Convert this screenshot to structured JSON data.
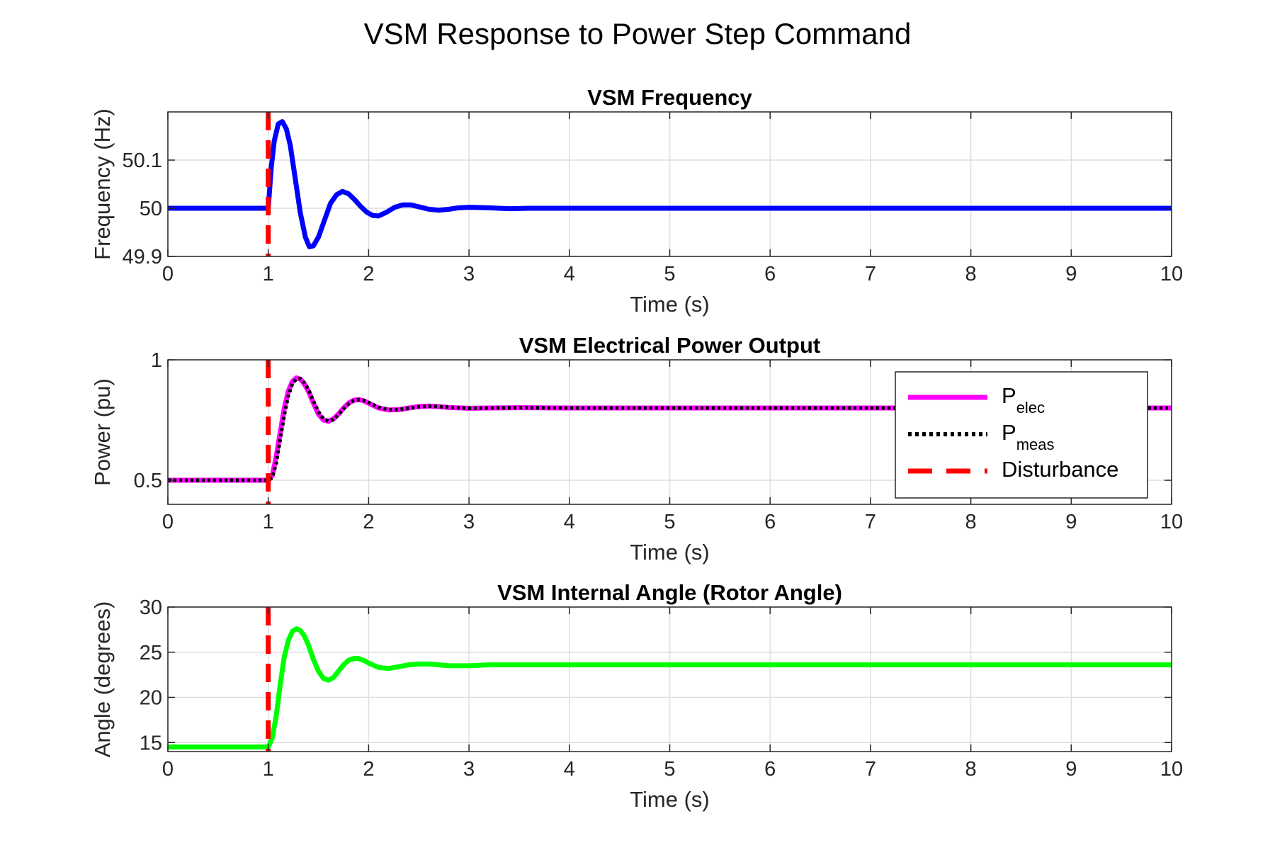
{
  "figure": {
    "title": "VSM Response to Power Step Command"
  },
  "chart_data": [
    {
      "type": "line",
      "title": "VSM Frequency",
      "xlabel": "Time (s)",
      "ylabel": "Frequency (Hz)",
      "xlim": [
        0,
        10
      ],
      "ylim": [
        49.9,
        50.2
      ],
      "xticks": [
        "0",
        "1",
        "2",
        "3",
        "4",
        "5",
        "6",
        "7",
        "8",
        "9",
        "10"
      ],
      "yticks": [
        "49.9",
        "50",
        "50.1"
      ],
      "ytick_values": [
        49.9,
        50.0,
        50.1
      ],
      "grid": true,
      "disturbance_time": 1,
      "disturbance_color": "#ff0000",
      "series": [
        {
          "color": "#0000ff",
          "x": [
            0,
            1.0,
            1.03,
            1.06,
            1.1,
            1.14,
            1.18,
            1.22,
            1.27,
            1.32,
            1.37,
            1.41,
            1.45,
            1.5,
            1.56,
            1.62,
            1.68,
            1.74,
            1.8,
            1.86,
            1.92,
            1.98,
            2.04,
            2.1,
            2.18,
            2.26,
            2.34,
            2.42,
            2.5,
            2.6,
            2.7,
            2.8,
            2.9,
            3.0,
            3.2,
            3.4,
            3.6,
            3.8,
            4.0,
            5.0,
            6.0,
            7.0,
            8.0,
            9.0,
            10.0
          ],
          "y": [
            50.0,
            50.0,
            50.085,
            50.14,
            50.175,
            50.18,
            50.165,
            50.13,
            50.06,
            49.99,
            49.94,
            49.92,
            49.922,
            49.94,
            49.975,
            50.01,
            50.028,
            50.035,
            50.03,
            50.018,
            50.004,
            49.992,
            49.985,
            49.984,
            49.992,
            50.002,
            50.007,
            50.007,
            50.003,
            49.998,
            49.996,
            49.998,
            50.001,
            50.002,
            50.001,
            49.999,
            50.0,
            50.0,
            50.0,
            50.0,
            50.0,
            50.0,
            50.0,
            50.0,
            50.0
          ]
        }
      ]
    },
    {
      "type": "line",
      "title": "VSM Electrical Power Output",
      "xlabel": "Time (s)",
      "ylabel": "Power (pu)",
      "xlim": [
        0,
        10
      ],
      "ylim": [
        0.4,
        1.0
      ],
      "xticks": [
        "0",
        "1",
        "2",
        "3",
        "4",
        "5",
        "6",
        "7",
        "8",
        "9",
        "10"
      ],
      "yticks": [
        "0.5",
        "1"
      ],
      "ytick_values": [
        0.5,
        1.0
      ],
      "grid": true,
      "disturbance_time": 1,
      "disturbance_color": "#ff0000",
      "legend": {
        "placement": "top-right",
        "entries": [
          {
            "main": "P",
            "sub": "elec",
            "color": "#ff00ff",
            "style": "solid"
          },
          {
            "main": "P",
            "sub": "meas",
            "color": "#000000",
            "style": "dotted"
          },
          {
            "main": "Disturbance",
            "sub": "",
            "color": "#ff0000",
            "style": "dashed"
          }
        ]
      },
      "series": [
        {
          "name": "Pelec",
          "color": "#ff00ff",
          "x": [
            0,
            1.0,
            1.04,
            1.08,
            1.12,
            1.16,
            1.2,
            1.24,
            1.28,
            1.32,
            1.36,
            1.4,
            1.45,
            1.5,
            1.55,
            1.6,
            1.65,
            1.7,
            1.75,
            1.8,
            1.85,
            1.9,
            1.95,
            2.0,
            2.1,
            2.2,
            2.3,
            2.4,
            2.5,
            2.6,
            2.7,
            2.8,
            3.0,
            3.2,
            3.5,
            4.0,
            5.0,
            6.0,
            7.0,
            8.0,
            9.0,
            10.0
          ],
          "y": [
            0.5,
            0.5,
            0.52,
            0.6,
            0.7,
            0.8,
            0.87,
            0.91,
            0.925,
            0.92,
            0.9,
            0.87,
            0.82,
            0.775,
            0.75,
            0.745,
            0.755,
            0.775,
            0.8,
            0.82,
            0.832,
            0.835,
            0.83,
            0.82,
            0.8,
            0.792,
            0.793,
            0.8,
            0.806,
            0.808,
            0.806,
            0.802,
            0.799,
            0.8,
            0.801,
            0.8,
            0.8,
            0.8,
            0.8,
            0.8,
            0.8,
            0.8
          ]
        },
        {
          "name": "Pmeas",
          "color": "#000000",
          "x": [
            0,
            1.0,
            1.04,
            1.08,
            1.12,
            1.16,
            1.2,
            1.24,
            1.28,
            1.32,
            1.36,
            1.4,
            1.45,
            1.5,
            1.55,
            1.6,
            1.65,
            1.7,
            1.75,
            1.8,
            1.85,
            1.9,
            1.95,
            2.0,
            2.1,
            2.2,
            2.3,
            2.4,
            2.5,
            2.6,
            2.7,
            2.8,
            3.0,
            3.2,
            3.5,
            4.0,
            5.0,
            6.0,
            7.0,
            8.0,
            9.0,
            10.0
          ],
          "y": [
            0.5,
            0.5,
            0.51,
            0.57,
            0.67,
            0.77,
            0.85,
            0.9,
            0.92,
            0.922,
            0.905,
            0.878,
            0.83,
            0.785,
            0.755,
            0.745,
            0.752,
            0.772,
            0.796,
            0.816,
            0.83,
            0.835,
            0.832,
            0.823,
            0.803,
            0.793,
            0.793,
            0.799,
            0.805,
            0.808,
            0.806,
            0.803,
            0.799,
            0.8,
            0.801,
            0.8,
            0.8,
            0.8,
            0.8,
            0.8,
            0.8,
            0.8
          ]
        }
      ]
    },
    {
      "type": "line",
      "title": "VSM Internal Angle (Rotor Angle)",
      "xlabel": "Time (s)",
      "ylabel": "Angle (degrees)",
      "xlim": [
        0,
        10
      ],
      "ylim": [
        14,
        30
      ],
      "xticks": [
        "0",
        "1",
        "2",
        "3",
        "4",
        "5",
        "6",
        "7",
        "8",
        "9",
        "10"
      ],
      "yticks": [
        "15",
        "20",
        "25",
        "30"
      ],
      "ytick_values": [
        15,
        20,
        25,
        30
      ],
      "grid": true,
      "disturbance_time": 1,
      "disturbance_color": "#ff0000",
      "series": [
        {
          "color": "#00ff00",
          "x": [
            0,
            1.0,
            1.04,
            1.08,
            1.12,
            1.16,
            1.2,
            1.24,
            1.28,
            1.32,
            1.36,
            1.4,
            1.45,
            1.5,
            1.55,
            1.6,
            1.65,
            1.7,
            1.75,
            1.8,
            1.85,
            1.9,
            1.95,
            2.0,
            2.1,
            2.2,
            2.3,
            2.4,
            2.5,
            2.6,
            2.7,
            2.8,
            3.0,
            3.2,
            3.5,
            4.0,
            5.0,
            6.0,
            7.0,
            8.0,
            9.0,
            10.0
          ],
          "y": [
            14.5,
            14.5,
            15.5,
            18.0,
            21.5,
            24.5,
            26.3,
            27.3,
            27.6,
            27.4,
            26.8,
            25.8,
            24.2,
            22.9,
            22.1,
            21.9,
            22.2,
            22.9,
            23.6,
            24.1,
            24.3,
            24.3,
            24.1,
            23.8,
            23.3,
            23.2,
            23.4,
            23.6,
            23.7,
            23.7,
            23.6,
            23.5,
            23.5,
            23.6,
            23.6,
            23.6,
            23.6,
            23.6,
            23.6,
            23.6,
            23.6,
            23.6
          ]
        }
      ]
    }
  ]
}
